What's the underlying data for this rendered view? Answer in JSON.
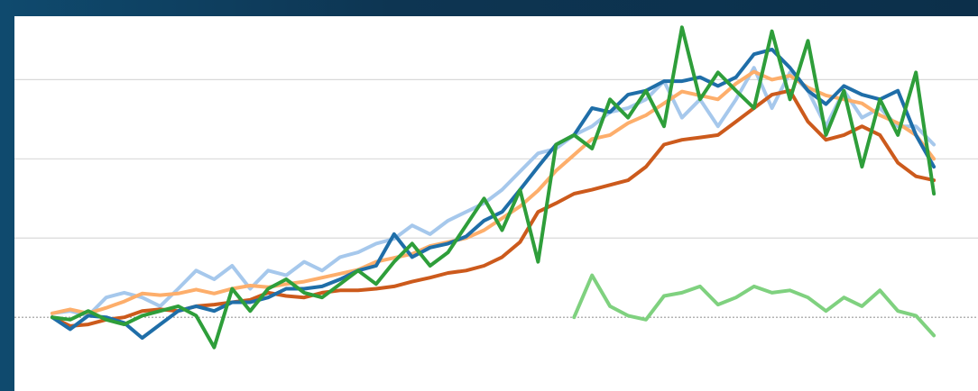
{
  "chart_data": {
    "type": "line",
    "x": [
      0,
      1,
      2,
      3,
      4,
      5,
      6,
      7,
      8,
      9,
      10,
      11,
      12,
      13,
      14,
      15,
      16,
      17,
      18,
      19,
      20,
      21,
      22,
      23,
      24,
      25,
      26,
      27,
      28,
      29,
      30,
      31,
      32,
      33,
      34,
      35,
      36,
      37,
      38,
      39,
      40,
      41,
      42,
      43,
      44,
      45,
      46,
      47,
      48,
      49
    ],
    "xlim": [
      -2.1,
      51.45
    ],
    "ylim": [
      -0.93,
      3.8
    ],
    "yticks": [
      0,
      1,
      2,
      3
    ],
    "grid": true,
    "series": [
      {
        "color": "#a6c8ec",
        "values": [
          0.05,
          0.08,
          0.02,
          0.25,
          0.31,
          0.25,
          0.14,
          0.36,
          0.59,
          0.48,
          0.65,
          0.36,
          0.59,
          0.53,
          0.7,
          0.59,
          0.76,
          0.82,
          0.93,
          0.99,
          1.16,
          1.05,
          1.22,
          1.33,
          1.44,
          1.61,
          1.84,
          2.07,
          2.13,
          2.3,
          2.41,
          2.59,
          2.64,
          2.75,
          2.98,
          2.52,
          2.75,
          2.41,
          2.75,
          3.15,
          2.64,
          3.09,
          2.86,
          2.41,
          2.86,
          2.52,
          2.64,
          2.41,
          2.41,
          2.18
        ]
      },
      {
        "color": "#fdae6b",
        "values": [
          0.05,
          0.1,
          0.05,
          0.12,
          0.2,
          0.3,
          0.28,
          0.3,
          0.35,
          0.3,
          0.36,
          0.4,
          0.38,
          0.42,
          0.45,
          0.5,
          0.55,
          0.6,
          0.7,
          0.75,
          0.8,
          0.9,
          0.95,
          1.0,
          1.1,
          1.25,
          1.4,
          1.6,
          1.85,
          2.05,
          2.25,
          2.3,
          2.45,
          2.55,
          2.7,
          2.85,
          2.8,
          2.75,
          2.95,
          3.1,
          3.0,
          3.05,
          2.9,
          2.8,
          2.75,
          2.7,
          2.55,
          2.45,
          2.3,
          2.0
        ]
      },
      {
        "color": "#cc5a1c",
        "values": [
          0,
          -0.11,
          -0.09,
          -0.03,
          0,
          0.08,
          0.1,
          0.08,
          0.14,
          0.16,
          0.19,
          0.22,
          0.31,
          0.27,
          0.25,
          0.31,
          0.34,
          0.34,
          0.36,
          0.39,
          0.45,
          0.5,
          0.56,
          0.59,
          0.65,
          0.76,
          0.95,
          1.33,
          1.44,
          1.56,
          1.61,
          1.67,
          1.73,
          1.9,
          2.18,
          2.24,
          2.27,
          2.3,
          2.47,
          2.64,
          2.81,
          2.86,
          2.47,
          2.24,
          2.3,
          2.41,
          2.3,
          1.95,
          1.78,
          1.73
        ]
      },
      {
        "color": "#1f6ea8",
        "values": [
          0,
          -0.15,
          0.02,
          0,
          -0.07,
          -0.26,
          -0.09,
          0.08,
          0.14,
          0.08,
          0.19,
          0.19,
          0.25,
          0.36,
          0.36,
          0.39,
          0.48,
          0.59,
          0.65,
          1.05,
          0.76,
          0.88,
          0.93,
          1.02,
          1.22,
          1.33,
          1.61,
          1.9,
          2.18,
          2.3,
          2.64,
          2.59,
          2.81,
          2.86,
          2.98,
          2.98,
          3.03,
          2.92,
          3.03,
          3.32,
          3.38,
          3.15,
          2.86,
          2.69,
          2.92,
          2.81,
          2.75,
          2.86,
          2.3,
          1.9
        ]
      },
      {
        "color": "#2e9e3a",
        "values": [
          0,
          -0.03,
          0.08,
          -0.03,
          -0.09,
          0.02,
          0.08,
          0.14,
          0.02,
          -0.38,
          0.36,
          0.08,
          0.36,
          0.48,
          0.31,
          0.25,
          0.42,
          0.59,
          0.42,
          0.7,
          0.93,
          0.65,
          0.82,
          1.16,
          1.5,
          1.1,
          1.61,
          0.7,
          2.18,
          2.3,
          2.13,
          2.75,
          2.52,
          2.86,
          2.41,
          3.66,
          2.75,
          3.09,
          2.86,
          2.64,
          3.61,
          2.75,
          3.49,
          2.3,
          2.86,
          1.9,
          2.75,
          2.3,
          3.09,
          1.56
        ]
      },
      {
        "color": "#7fd17f",
        "values": [
          null,
          null,
          null,
          null,
          null,
          null,
          null,
          null,
          null,
          null,
          null,
          null,
          null,
          null,
          null,
          null,
          null,
          null,
          null,
          null,
          null,
          null,
          null,
          null,
          null,
          null,
          null,
          null,
          null,
          0,
          0.53,
          0.14,
          0.02,
          -0.03,
          0.27,
          0.31,
          0.39,
          0.16,
          0.25,
          0.39,
          0.31,
          0.34,
          0.25,
          0.08,
          0.25,
          0.14,
          0.34,
          0.08,
          0.02,
          -0.23
        ]
      }
    ]
  }
}
